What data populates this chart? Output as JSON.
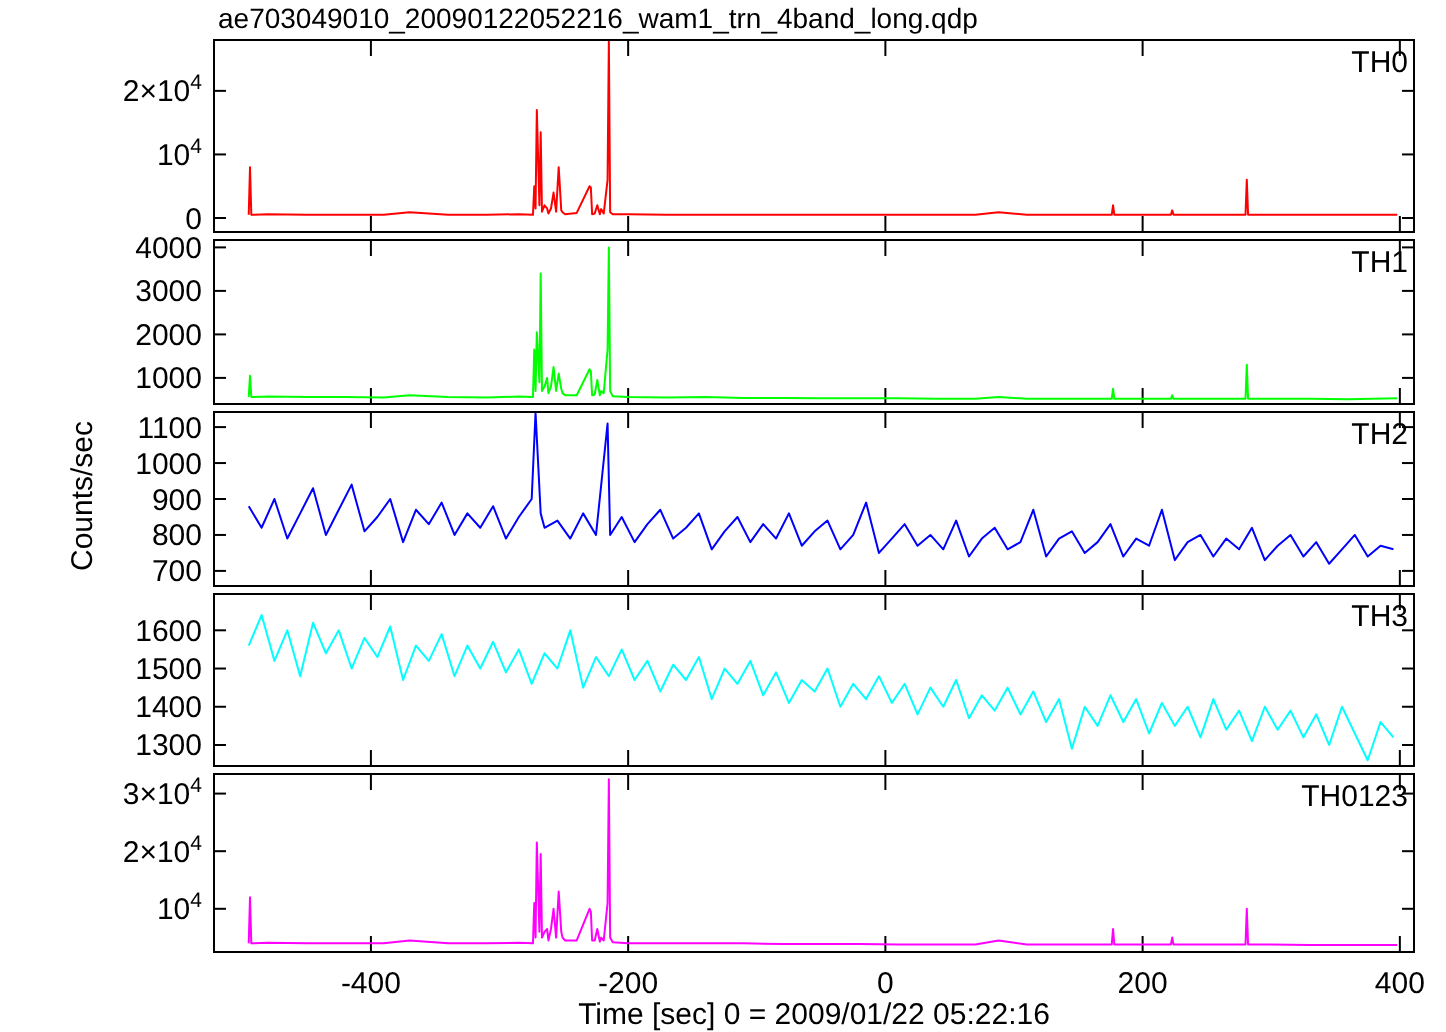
{
  "chart_data": [
    {
      "type": "line",
      "title": "ae703049010_20090122052216_wam1_trn_4band_long.qdp",
      "tick_labels": "y",
      "xlim": [
        -522,
        411
      ],
      "xticks": [
        -400,
        -200,
        0,
        200,
        400
      ],
      "ylim": [
        -2200,
        28000
      ],
      "yticks": [
        0,
        {
          "value": 10000,
          "label": "10$^{4}$"
        },
        {
          "value": 20000,
          "label": "2×10$^{4}$"
        }
      ],
      "x": [
        -495,
        -494,
        -493,
        -480,
        -450,
        -420,
        -390,
        -370,
        -340,
        -310,
        -285,
        -274,
        -273,
        -272,
        -271,
        -269,
        -268,
        -267,
        -265,
        -263,
        -262,
        -260,
        -258,
        -256,
        -254,
        -252,
        -251,
        -249,
        -240,
        -230,
        -229,
        -228,
        -226,
        -224,
        -222,
        -221,
        -219,
        -216,
        -215,
        -214,
        -212,
        -200,
        -170,
        -140,
        -110,
        -80,
        -50,
        -20,
        10,
        40,
        70,
        88,
        110,
        140,
        176,
        177,
        178,
        200,
        222,
        223,
        224,
        250,
        280,
        281,
        282,
        300,
        330,
        360,
        398
      ],
      "series": [
        {
          "name": "TH0",
          "color": "#ff0000",
          "values": [
            500,
            8000,
            500,
            600,
            500,
            500,
            500,
            900,
            500,
            500,
            600,
            500,
            5000,
            1500,
            17000,
            2000,
            13500,
            1000,
            2000,
            1500,
            700,
            1500,
            4000,
            1000,
            8000,
            1200,
            900,
            600,
            800,
            5000,
            4800,
            600,
            700,
            2000,
            600,
            1400,
            700,
            6000,
            28000,
            900,
            600,
            600,
            500,
            500,
            500,
            500,
            500,
            500,
            500,
            500,
            500,
            900,
            500,
            500,
            500,
            2000,
            500,
            500,
            500,
            1200,
            500,
            500,
            500,
            6000,
            500,
            500,
            500,
            500,
            500
          ]
        }
      ]
    },
    {
      "type": "line",
      "tick_labels": "y",
      "xlim": [
        -522,
        411
      ],
      "xticks": [
        -400,
        -200,
        0,
        200,
        400
      ],
      "ylim": [
        400,
        4170
      ],
      "yticks": [
        1000,
        2000,
        3000,
        4000
      ],
      "x": [
        -495,
        -494,
        -493,
        -480,
        -450,
        -420,
        -390,
        -370,
        -340,
        -310,
        -285,
        -274,
        -273,
        -272,
        -271,
        -269,
        -268,
        -267,
        -265,
        -263,
        -262,
        -260,
        -258,
        -256,
        -254,
        -252,
        -251,
        -249,
        -240,
        -230,
        -229,
        -228,
        -226,
        -224,
        -222,
        -221,
        -219,
        -216,
        -215,
        -214,
        -212,
        -200,
        -170,
        -140,
        -110,
        -80,
        -50,
        -20,
        10,
        40,
        70,
        88,
        110,
        140,
        176,
        177,
        178,
        200,
        222,
        223,
        224,
        250,
        280,
        281,
        282,
        300,
        330,
        360,
        398
      ],
      "series": [
        {
          "name": "TH1",
          "color": "#00ff00",
          "values": [
            560,
            1050,
            560,
            570,
            560,
            560,
            550,
            600,
            560,
            550,
            570,
            560,
            1650,
            700,
            2050,
            900,
            3400,
            700,
            800,
            1000,
            650,
            800,
            1250,
            700,
            1100,
            750,
            650,
            600,
            600,
            1200,
            1150,
            600,
            620,
            950,
            600,
            700,
            650,
            1650,
            4000,
            700,
            580,
            560,
            550,
            560,
            540,
            540,
            530,
            530,
            530,
            520,
            520,
            560,
            520,
            520,
            520,
            750,
            520,
            520,
            520,
            600,
            520,
            520,
            520,
            1300,
            520,
            520,
            520,
            510,
            530
          ]
        }
      ]
    },
    {
      "type": "line",
      "tick_labels": "y",
      "ylabel": "Counts/sec",
      "xlim": [
        -522,
        411
      ],
      "xticks": [
        -400,
        -200,
        0,
        200,
        400
      ],
      "ylim": [
        658,
        1142
      ],
      "yticks": [
        700,
        800,
        900,
        1000,
        1100
      ],
      "x": [
        -495,
        -485,
        -475,
        -465,
        -455,
        -445,
        -435,
        -425,
        -415,
        -405,
        -395,
        -385,
        -375,
        -365,
        -355,
        -345,
        -335,
        -325,
        -315,
        -305,
        -295,
        -285,
        -275,
        -272,
        -268,
        -265,
        -255,
        -245,
        -235,
        -225,
        -216,
        -214,
        -205,
        -195,
        -185,
        -175,
        -165,
        -155,
        -145,
        -135,
        -125,
        -115,
        -105,
        -95,
        -85,
        -75,
        -65,
        -55,
        -45,
        -35,
        -25,
        -15,
        -5,
        5,
        15,
        25,
        35,
        45,
        55,
        65,
        75,
        85,
        95,
        105,
        115,
        125,
        135,
        145,
        155,
        165,
        175,
        185,
        195,
        205,
        215,
        225,
        235,
        245,
        255,
        265,
        275,
        285,
        295,
        305,
        315,
        325,
        335,
        345,
        355,
        365,
        375,
        385,
        395
      ],
      "series": [
        {
          "name": "TH2",
          "color": "#0000ff",
          "values": [
            880,
            820,
            900,
            790,
            860,
            930,
            800,
            870,
            940,
            810,
            850,
            900,
            780,
            870,
            830,
            890,
            800,
            860,
            820,
            880,
            790,
            850,
            900,
            1140,
            860,
            820,
            840,
            790,
            860,
            800,
            1110,
            800,
            850,
            780,
            830,
            870,
            790,
            820,
            860,
            760,
            810,
            850,
            780,
            830,
            790,
            860,
            770,
            810,
            840,
            760,
            800,
            890,
            750,
            790,
            830,
            770,
            800,
            760,
            840,
            740,
            790,
            820,
            760,
            780,
            870,
            740,
            790,
            810,
            750,
            780,
            830,
            740,
            790,
            770,
            870,
            730,
            780,
            800,
            740,
            790,
            760,
            820,
            730,
            770,
            800,
            740,
            780,
            720,
            760,
            800,
            740,
            770,
            760
          ]
        }
      ]
    },
    {
      "type": "line",
      "tick_labels": "y",
      "xlim": [
        -522,
        411
      ],
      "xticks": [
        -400,
        -200,
        0,
        200,
        400
      ],
      "ylim": [
        1245,
        1695
      ],
      "yticks": [
        1300,
        1400,
        1500,
        1600
      ],
      "x": [
        -495,
        -485,
        -475,
        -465,
        -455,
        -445,
        -435,
        -425,
        -415,
        -405,
        -395,
        -385,
        -375,
        -365,
        -355,
        -345,
        -335,
        -325,
        -315,
        -305,
        -295,
        -285,
        -275,
        -265,
        -255,
        -245,
        -235,
        -225,
        -215,
        -205,
        -195,
        -185,
        -175,
        -165,
        -155,
        -145,
        -135,
        -125,
        -115,
        -105,
        -95,
        -85,
        -75,
        -65,
        -55,
        -45,
        -35,
        -25,
        -15,
        -5,
        5,
        15,
        25,
        35,
        45,
        55,
        65,
        75,
        85,
        95,
        105,
        115,
        125,
        135,
        145,
        155,
        165,
        175,
        185,
        195,
        205,
        215,
        225,
        235,
        245,
        255,
        265,
        275,
        285,
        295,
        305,
        315,
        325,
        335,
        345,
        355,
        365,
        375,
        385,
        395
      ],
      "series": [
        {
          "name": "TH3",
          "color": "#00ffff",
          "values": [
            1560,
            1640,
            1520,
            1600,
            1480,
            1620,
            1540,
            1600,
            1500,
            1580,
            1530,
            1610,
            1470,
            1560,
            1520,
            1590,
            1480,
            1560,
            1500,
            1570,
            1490,
            1550,
            1460,
            1540,
            1500,
            1600,
            1450,
            1530,
            1480,
            1550,
            1470,
            1520,
            1440,
            1510,
            1470,
            1530,
            1420,
            1500,
            1460,
            1520,
            1430,
            1490,
            1410,
            1470,
            1440,
            1500,
            1400,
            1460,
            1420,
            1480,
            1410,
            1460,
            1380,
            1450,
            1400,
            1470,
            1370,
            1430,
            1390,
            1450,
            1380,
            1440,
            1360,
            1420,
            1290,
            1400,
            1350,
            1430,
            1360,
            1420,
            1330,
            1410,
            1350,
            1400,
            1320,
            1420,
            1340,
            1390,
            1310,
            1400,
            1340,
            1390,
            1320,
            1380,
            1300,
            1400,
            1330,
            1260,
            1360,
            1320
          ]
        }
      ]
    },
    {
      "type": "line",
      "xlabel": "Time [sec] 0 = 2009/01/22 05:22:16",
      "xlim": [
        -522,
        411
      ],
      "xticks": [
        -400,
        -200,
        0,
        200,
        400
      ],
      "ylim": [
        2500,
        33400
      ],
      "yticks": [
        {
          "value": 10000,
          "label": "10$^{4}$"
        },
        {
          "value": 20000,
          "label": "2×10$^{4}$"
        },
        {
          "value": 30000,
          "label": "3×10$^{4}$"
        }
      ],
      "x": [
        -495,
        -494,
        -493,
        -480,
        -450,
        -420,
        -390,
        -370,
        -340,
        -310,
        -285,
        -274,
        -273,
        -272,
        -271,
        -269,
        -268,
        -267,
        -265,
        -263,
        -262,
        -260,
        -258,
        -256,
        -254,
        -252,
        -251,
        -249,
        -240,
        -230,
        -229,
        -228,
        -226,
        -224,
        -222,
        -221,
        -219,
        -216,
        -215,
        -214,
        -212,
        -200,
        -170,
        -140,
        -110,
        -80,
        -50,
        -20,
        10,
        40,
        70,
        88,
        110,
        140,
        176,
        177,
        178,
        200,
        222,
        223,
        224,
        250,
        280,
        281,
        282,
        300,
        330,
        360,
        398
      ],
      "series": [
        {
          "name": "TH0123",
          "color": "#ff00ff",
          "values": [
            4000,
            12000,
            4000,
            4100,
            4000,
            4000,
            4000,
            4500,
            4000,
            4000,
            4100,
            4000,
            11000,
            5000,
            21500,
            6000,
            19500,
            5000,
            6000,
            6500,
            4500,
            6500,
            10000,
            5000,
            13000,
            6000,
            5000,
            4500,
            4500,
            10000,
            9500,
            4500,
            4500,
            6500,
            4300,
            5000,
            4500,
            11000,
            32500,
            5000,
            4200,
            4000,
            4000,
            4000,
            4000,
            3900,
            3900,
            3900,
            3800,
            3800,
            3800,
            4500,
            3800,
            3800,
            3800,
            6500,
            3800,
            3800,
            3800,
            5000,
            3800,
            3800,
            3800,
            10000,
            3800,
            3800,
            3700,
            3700,
            3700
          ]
        }
      ]
    }
  ]
}
